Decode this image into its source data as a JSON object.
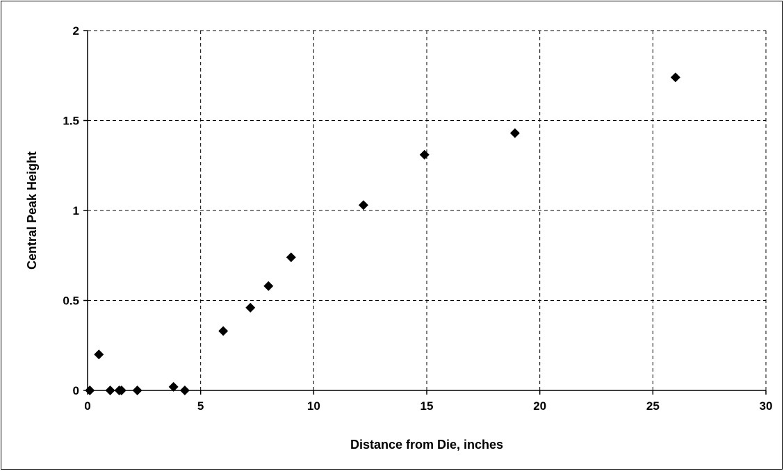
{
  "chart_data": {
    "type": "scatter",
    "title": "",
    "xlabel": "Distance from Die, inches",
    "ylabel": "Central Peak Height",
    "xlim": [
      0,
      30
    ],
    "ylim": [
      0,
      2
    ],
    "x_ticks": [
      0,
      5,
      10,
      15,
      20,
      25,
      30
    ],
    "y_ticks": [
      0,
      0.5,
      1,
      1.5,
      2
    ],
    "x_tick_labels": [
      "0",
      "5",
      "10",
      "15",
      "20",
      "25",
      "30"
    ],
    "y_tick_labels": [
      "0",
      "0.5",
      "1",
      "1.5",
      "2"
    ],
    "grid": true,
    "grid_style": "dashed",
    "legend": "none",
    "marker": "diamond",
    "marker_color": "#000000",
    "series": [
      {
        "points": [
          {
            "x": 0.1,
            "y": 0.0
          },
          {
            "x": 0.5,
            "y": 0.2
          },
          {
            "x": 1.0,
            "y": 0.0
          },
          {
            "x": 1.4,
            "y": 0.0
          },
          {
            "x": 1.5,
            "y": 0.0
          },
          {
            "x": 2.2,
            "y": 0.0
          },
          {
            "x": 3.8,
            "y": 0.02
          },
          {
            "x": 4.3,
            "y": 0.0
          },
          {
            "x": 6.0,
            "y": 0.33
          },
          {
            "x": 7.2,
            "y": 0.46
          },
          {
            "x": 8.0,
            "y": 0.58
          },
          {
            "x": 9.0,
            "y": 0.74
          },
          {
            "x": 12.2,
            "y": 1.03
          },
          {
            "x": 14.9,
            "y": 1.31
          },
          {
            "x": 18.9,
            "y": 1.43
          },
          {
            "x": 26.0,
            "y": 1.74
          }
        ]
      }
    ]
  }
}
